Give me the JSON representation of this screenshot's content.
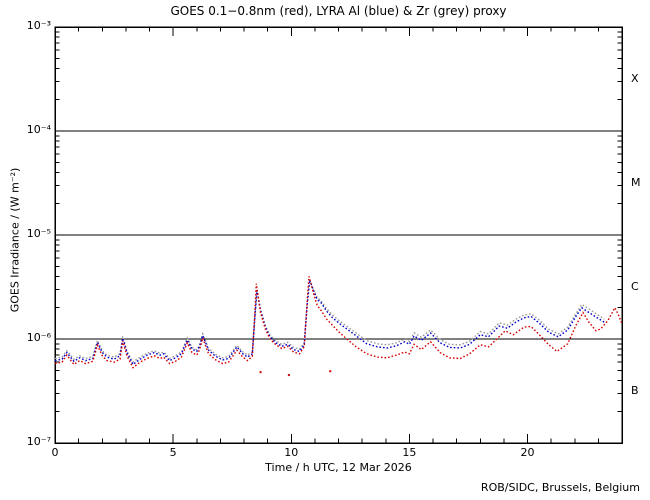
{
  "footer": {
    "credit": "ROB/SIDC, Brussels, Belgium"
  },
  "chart_data": {
    "type": "line",
    "style": "dotted-log-timeseries",
    "title": "GOES 0.1−0.8nm (red), LYRA Al (blue) & Zr (grey) proxy",
    "xlabel": "Time / h UTC, 12 Mar 2026",
    "ylabel": "GOES Irradiance / (W m⁻²)",
    "x_range": [
      0,
      24
    ],
    "x_minor_step": 1,
    "x_major_ticks": [
      {
        "value": 0,
        "label": "0"
      },
      {
        "value": 5,
        "label": "5"
      },
      {
        "value": 10,
        "label": "10"
      },
      {
        "value": 15,
        "label": "15"
      },
      {
        "value": 20,
        "label": "20"
      }
    ],
    "y_log_range": [
      -7,
      -3
    ],
    "y_ticks": [
      {
        "exp": -3,
        "label": "10⁻³"
      },
      {
        "exp": -4,
        "label": "10⁻⁴"
      },
      {
        "exp": -5,
        "label": "10⁻⁵"
      },
      {
        "exp": -6,
        "label": "10⁻⁶"
      },
      {
        "exp": -7,
        "label": "10⁻⁷"
      }
    ],
    "hlines": [
      0.0001,
      1e-05,
      1e-06
    ],
    "flare_classes": [
      {
        "label": "X",
        "center_exp": -3.5
      },
      {
        "label": "M",
        "center_exp": -4.5
      },
      {
        "label": "C",
        "center_exp": -5.5
      },
      {
        "label": "B",
        "center_exp": -6.5
      }
    ],
    "colors": {
      "goes_red": "#d40000",
      "lyra_al_blue": "#0000cc",
      "lyra_zr_grey": "#999999",
      "frame": "#000000"
    },
    "legend_position": "in-title",
    "grid": false,
    "series": [
      {
        "name": "LYRA Zr proxy",
        "color": "#999999",
        "points": [
          [
            0.0,
            6.5e-07
          ],
          [
            0.3,
            6.7e-07
          ],
          [
            0.5,
            7.7e-07
          ],
          [
            0.8,
            6.4e-07
          ],
          [
            1.05,
            6.9e-07
          ],
          [
            1.3,
            6.5e-07
          ],
          [
            1.6,
            6.8e-07
          ],
          [
            1.8,
            9.7e-07
          ],
          [
            2.0,
            7.7e-07
          ],
          [
            2.2,
            7e-07
          ],
          [
            2.5,
            6.7e-07
          ],
          [
            2.75,
            7.2e-07
          ],
          [
            2.87,
            1.06e-06
          ],
          [
            3.05,
            7.6e-07
          ],
          [
            3.3,
            6e-07
          ],
          [
            3.6,
            6.7e-07
          ],
          [
            3.9,
            7.3e-07
          ],
          [
            4.2,
            7.7e-07
          ],
          [
            4.45,
            7.3e-07
          ],
          [
            4.6,
            7.5e-07
          ],
          [
            4.85,
            6.5e-07
          ],
          [
            5.1,
            6.9e-07
          ],
          [
            5.35,
            7.5e-07
          ],
          [
            5.6,
            1.02e-06
          ],
          [
            5.8,
            8.3e-07
          ],
          [
            6.0,
            7.9e-07
          ],
          [
            6.12,
            8.8e-07
          ],
          [
            6.25,
            1.12e-06
          ],
          [
            6.5,
            8.1e-07
          ],
          [
            6.8,
            7.1e-07
          ],
          [
            7.1,
            6.6e-07
          ],
          [
            7.35,
            6.8e-07
          ],
          [
            7.7,
            8.7e-07
          ],
          [
            7.95,
            7.5e-07
          ],
          [
            8.15,
            7e-07
          ],
          [
            8.35,
            7.5e-07
          ],
          [
            8.45,
            1.5e-06
          ],
          [
            8.55,
            2.9e-06
          ],
          [
            8.7,
            1.9e-06
          ],
          [
            8.9,
            1.35e-06
          ],
          [
            9.1,
            1.08e-06
          ],
          [
            9.35,
            9.6e-07
          ],
          [
            9.6,
            8.9e-07
          ],
          [
            9.85,
            9.3e-07
          ],
          [
            10.1,
            8.3e-07
          ],
          [
            10.35,
            8e-07
          ],
          [
            10.55,
            9.2e-07
          ],
          [
            10.68,
            2.2e-06
          ],
          [
            10.78,
            3.6e-06
          ],
          [
            10.95,
            2.95e-06
          ],
          [
            11.1,
            2.5e-06
          ],
          [
            11.25,
            2.35e-06
          ],
          [
            11.5,
            1.95e-06
          ],
          [
            11.75,
            1.7e-06
          ],
          [
            12.05,
            1.48e-06
          ],
          [
            12.35,
            1.33e-06
          ],
          [
            12.75,
            1.14e-06
          ],
          [
            13.2,
            9.6e-07
          ],
          [
            13.65,
            9e-07
          ],
          [
            14.05,
            8.8e-07
          ],
          [
            14.45,
            9.2e-07
          ],
          [
            14.8,
            1e-06
          ],
          [
            15.0,
            9.5e-07
          ],
          [
            15.2,
            1.15e-06
          ],
          [
            15.5,
            1.04e-06
          ],
          [
            15.9,
            1.22e-06
          ],
          [
            16.3,
            9.9e-07
          ],
          [
            16.7,
            8.9e-07
          ],
          [
            17.15,
            8.8e-07
          ],
          [
            17.55,
            9.5e-07
          ],
          [
            18.0,
            1.18e-06
          ],
          [
            18.35,
            1.12e-06
          ],
          [
            18.8,
            1.43e-06
          ],
          [
            19.15,
            1.36e-06
          ],
          [
            19.5,
            1.55e-06
          ],
          [
            19.85,
            1.7e-06
          ],
          [
            20.15,
            1.75e-06
          ],
          [
            20.5,
            1.52e-06
          ],
          [
            20.9,
            1.24e-06
          ],
          [
            21.3,
            1.12e-06
          ],
          [
            21.7,
            1.3e-06
          ],
          [
            22.05,
            1.75e-06
          ],
          [
            22.3,
            2.15e-06
          ],
          [
            22.6,
            1.95e-06
          ],
          [
            22.95,
            1.72e-06
          ],
          [
            23.25,
            1.55e-06
          ]
        ]
      },
      {
        "name": "LYRA Al proxy",
        "color": "#0000cc",
        "points": [
          [
            0.0,
            6.2e-07
          ],
          [
            0.3,
            6.4e-07
          ],
          [
            0.5,
            7.4e-07
          ],
          [
            0.8,
            6.1e-07
          ],
          [
            1.05,
            6.6e-07
          ],
          [
            1.3,
            6.2e-07
          ],
          [
            1.6,
            6.5e-07
          ],
          [
            1.8,
            9.3e-07
          ],
          [
            2.0,
            7.4e-07
          ],
          [
            2.2,
            6.7e-07
          ],
          [
            2.5,
            6.4e-07
          ],
          [
            2.75,
            6.9e-07
          ],
          [
            2.87,
            1.02e-06
          ],
          [
            3.05,
            7.3e-07
          ],
          [
            3.3,
            5.7e-07
          ],
          [
            3.6,
            6.4e-07
          ],
          [
            3.9,
            7e-07
          ],
          [
            4.2,
            7.4e-07
          ],
          [
            4.45,
            7e-07
          ],
          [
            4.6,
            7.2e-07
          ],
          [
            4.85,
            6.2e-07
          ],
          [
            5.1,
            6.6e-07
          ],
          [
            5.35,
            7.2e-07
          ],
          [
            5.6,
            9.8e-07
          ],
          [
            5.8,
            8e-07
          ],
          [
            6.0,
            7.6e-07
          ],
          [
            6.12,
            8.5e-07
          ],
          [
            6.25,
            1.08e-06
          ],
          [
            6.5,
            7.8e-07
          ],
          [
            6.8,
            6.8e-07
          ],
          [
            7.1,
            6.3e-07
          ],
          [
            7.35,
            6.5e-07
          ],
          [
            7.7,
            8.4e-07
          ],
          [
            7.95,
            7.2e-07
          ],
          [
            8.15,
            6.7e-07
          ],
          [
            8.35,
            7.2e-07
          ],
          [
            8.45,
            1.5e-06
          ],
          [
            8.55,
            2.95e-06
          ],
          [
            8.7,
            1.9e-06
          ],
          [
            8.9,
            1.3e-06
          ],
          [
            9.1,
            1.05e-06
          ],
          [
            9.35,
            9.2e-07
          ],
          [
            9.6,
            8.5e-07
          ],
          [
            9.85,
            8.9e-07
          ],
          [
            10.1,
            7.9e-07
          ],
          [
            10.35,
            7.6e-07
          ],
          [
            10.55,
            8.8e-07
          ],
          [
            10.68,
            2.2e-06
          ],
          [
            10.78,
            3.7e-06
          ],
          [
            10.95,
            2.9e-06
          ],
          [
            11.1,
            2.4e-06
          ],
          [
            11.25,
            2.25e-06
          ],
          [
            11.5,
            1.85e-06
          ],
          [
            11.75,
            1.6e-06
          ],
          [
            12.05,
            1.4e-06
          ],
          [
            12.35,
            1.25e-06
          ],
          [
            12.75,
            1.07e-06
          ],
          [
            13.2,
            9e-07
          ],
          [
            13.65,
            8.4e-07
          ],
          [
            14.05,
            8.2e-07
          ],
          [
            14.45,
            8.6e-07
          ],
          [
            14.8,
            9.4e-07
          ],
          [
            15.0,
            8.9e-07
          ],
          [
            15.2,
            1.07e-06
          ],
          [
            15.5,
            9.7e-07
          ],
          [
            15.9,
            1.14e-06
          ],
          [
            16.3,
            9.2e-07
          ],
          [
            16.7,
            8.3e-07
          ],
          [
            17.15,
            8.2e-07
          ],
          [
            17.55,
            8.9e-07
          ],
          [
            18.0,
            1.1e-06
          ],
          [
            18.35,
            1.05e-06
          ],
          [
            18.8,
            1.33e-06
          ],
          [
            19.15,
            1.27e-06
          ],
          [
            19.5,
            1.45e-06
          ],
          [
            19.85,
            1.6e-06
          ],
          [
            20.15,
            1.65e-06
          ],
          [
            20.5,
            1.42e-06
          ],
          [
            20.9,
            1.16e-06
          ],
          [
            21.3,
            1.05e-06
          ],
          [
            21.7,
            1.22e-06
          ],
          [
            22.05,
            1.65e-06
          ],
          [
            22.3,
            2e-06
          ],
          [
            22.6,
            1.8e-06
          ],
          [
            22.95,
            1.6e-06
          ],
          [
            23.25,
            1.45e-06
          ]
        ]
      },
      {
        "name": "GOES 0.1−0.8nm",
        "color": "#d40000",
        "points": [
          [
            0.0,
            5.8e-07
          ],
          [
            0.3,
            6e-07
          ],
          [
            0.5,
            7e-07
          ],
          [
            0.8,
            5.7e-07
          ],
          [
            1.05,
            6.2e-07
          ],
          [
            1.3,
            5.8e-07
          ],
          [
            1.6,
            6.1e-07
          ],
          [
            1.8,
            8.7e-07
          ],
          [
            2.0,
            6.9e-07
          ],
          [
            2.2,
            6.2e-07
          ],
          [
            2.5,
            6e-07
          ],
          [
            2.75,
            6.4e-07
          ],
          [
            2.87,
            9.6e-07
          ],
          [
            3.05,
            6.8e-07
          ],
          [
            3.3,
            5.3e-07
          ],
          [
            3.6,
            6e-07
          ],
          [
            3.9,
            6.5e-07
          ],
          [
            4.2,
            6.9e-07
          ],
          [
            4.45,
            6.5e-07
          ],
          [
            4.6,
            6.7e-07
          ],
          [
            4.85,
            5.8e-07
          ],
          [
            5.1,
            6.1e-07
          ],
          [
            5.35,
            6.7e-07
          ],
          [
            5.6,
            9.2e-07
          ],
          [
            5.8,
            7.4e-07
          ],
          [
            6.0,
            7e-07
          ],
          [
            6.12,
            7.9e-07
          ],
          [
            6.25,
            1.02e-06
          ],
          [
            6.5,
            7.2e-07
          ],
          [
            6.8,
            6.3e-07
          ],
          [
            7.1,
            5.8e-07
          ],
          [
            7.35,
            6e-07
          ],
          [
            7.7,
            7.8e-07
          ],
          [
            7.95,
            6.7e-07
          ],
          [
            8.15,
            6.2e-07
          ],
          [
            8.35,
            6.8e-07
          ],
          [
            8.45,
            1.6e-06
          ],
          [
            8.52,
            3.4e-06
          ],
          [
            8.7,
            1.8e-06
          ],
          [
            8.9,
            1.25e-06
          ],
          [
            9.1,
            1e-06
          ],
          [
            9.35,
            8.8e-07
          ],
          [
            9.6,
            8.1e-07
          ],
          [
            9.85,
            8.5e-07
          ],
          [
            10.1,
            7.5e-07
          ],
          [
            10.35,
            7.2e-07
          ],
          [
            10.55,
            8.4e-07
          ],
          [
            10.68,
            2.4e-06
          ],
          [
            10.75,
            4e-06
          ],
          [
            10.95,
            2.7e-06
          ],
          [
            11.1,
            2.1e-06
          ],
          [
            11.25,
            1.9e-06
          ],
          [
            11.5,
            1.55e-06
          ],
          [
            11.75,
            1.35e-06
          ],
          [
            12.05,
            1.15e-06
          ],
          [
            12.35,
            1e-06
          ],
          [
            12.75,
            8.4e-07
          ],
          [
            13.2,
            7.2e-07
          ],
          [
            13.65,
            6.7e-07
          ],
          [
            14.05,
            6.6e-07
          ],
          [
            14.45,
            7e-07
          ],
          [
            14.8,
            7.5e-07
          ],
          [
            15.0,
            7.2e-07
          ],
          [
            15.2,
            8.9e-07
          ],
          [
            15.5,
            7.9e-07
          ],
          [
            15.9,
            9.4e-07
          ],
          [
            16.3,
            7.4e-07
          ],
          [
            16.7,
            6.6e-07
          ],
          [
            17.15,
            6.5e-07
          ],
          [
            17.55,
            7.2e-07
          ],
          [
            18.0,
            8.8e-07
          ],
          [
            18.35,
            8.4e-07
          ],
          [
            18.8,
            1.05e-06
          ],
          [
            19.05,
            1.2e-06
          ],
          [
            19.4,
            1.1e-06
          ],
          [
            19.85,
            1.3e-06
          ],
          [
            20.15,
            1.32e-06
          ],
          [
            20.5,
            1.1e-06
          ],
          [
            20.9,
            8.8e-07
          ],
          [
            21.25,
            7.6e-07
          ],
          [
            21.7,
            9e-07
          ],
          [
            22.05,
            1.35e-06
          ],
          [
            22.35,
            1.8e-06
          ],
          [
            22.6,
            1.45e-06
          ],
          [
            22.9,
            1.2e-06
          ],
          [
            23.1,
            1.25e-06
          ],
          [
            23.4,
            1.5e-06
          ],
          [
            23.7,
            2e-06
          ],
          [
            23.85,
            1.7e-06
          ],
          [
            24.0,
            1.4e-06
          ]
        ]
      }
    ],
    "outliers": [
      {
        "series": "GOES 0.1−0.8nm",
        "color": "#d40000",
        "points": [
          [
            8.7,
            4.8e-07
          ],
          [
            9.9,
            4.5e-07
          ],
          [
            11.65,
            4.9e-07
          ]
        ]
      }
    ]
  }
}
